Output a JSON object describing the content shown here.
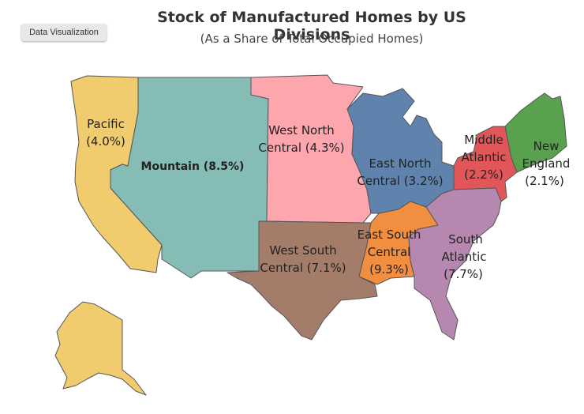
{
  "button": {
    "label": "Data Visualization"
  },
  "title": "Stock of Manufactured Homes by US Divisions",
  "subtitle": "(As a Share of Total Occupied Homes)",
  "regions": {
    "pacific": {
      "line1": "Pacific",
      "line2": "(4.0%)",
      "share": 4.0,
      "color": "#f0cc6e"
    },
    "mountain": {
      "line1": "Mountain (8.5%)",
      "share": 8.5,
      "color": "#85bcb6"
    },
    "wnc": {
      "line1": "West North",
      "line2": "Central (4.3%)",
      "share": 4.3,
      "color": "#fda6ae"
    },
    "enc": {
      "line1": "East North",
      "line2": "Central (3.2%)",
      "share": 3.2,
      "color": "#5f83ad"
    },
    "mid_atl": {
      "line1": "Middle",
      "line2": "Atlantic",
      "line3": "(2.2%)",
      "share": 2.2,
      "color": "#e15759"
    },
    "ne": {
      "line1": "New",
      "line2": "England",
      "line3": "(2.1%)",
      "share": 2.1,
      "color": "#59a14f"
    },
    "wsc": {
      "line1": "West South",
      "line2": "Central (7.1%)",
      "share": 7.1,
      "color": "#a47d6a"
    },
    "esc": {
      "line1": "East South",
      "line2": "Central",
      "line3": "(9.3%)",
      "share": 9.3,
      "color": "#f28e3f"
    },
    "sa": {
      "line1": "South",
      "line2": "Atlantic",
      "line3": "(7.7%)",
      "share": 7.7,
      "color": "#b688b0"
    }
  }
}
